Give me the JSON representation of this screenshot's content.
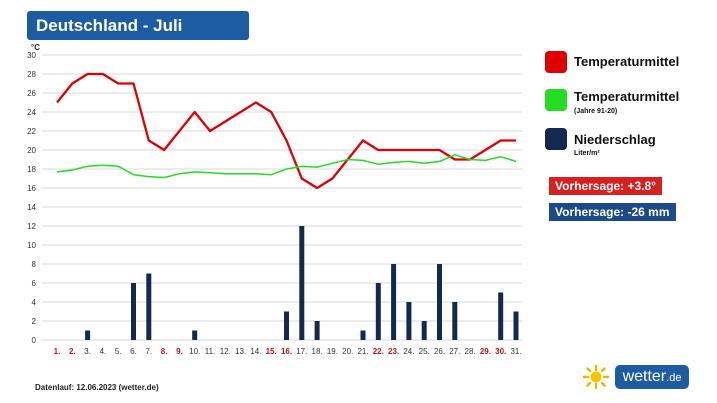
{
  "header": {
    "title": "Deutschland - Juli"
  },
  "legend": {
    "temp": {
      "label": "Temperaturmittel",
      "color": "#e00000"
    },
    "temp_ref": {
      "label": "Temperaturmittel",
      "sub": "(Jahre 91-20)",
      "color": "#22dd22"
    },
    "rain": {
      "label": "Niederschlag",
      "sub": "Liter/m²",
      "color": "#14294f"
    }
  },
  "forecast": {
    "temp": {
      "text": "Vorhersage: +3.8°",
      "color": "#d92020"
    },
    "rain": {
      "text": "Vorhersage: -26 mm",
      "color": "#1d4a8a"
    }
  },
  "footer": {
    "text": "Datenlauf: 12.06.2023 (wetter.de)"
  },
  "brand": {
    "name": "wetter",
    "tld": ".de"
  },
  "chart_data": {
    "type": "line",
    "ylabel": "°C",
    "ylim": [
      0,
      30
    ],
    "yticks": [
      0,
      2,
      4,
      6,
      8,
      10,
      12,
      14,
      16,
      18,
      20,
      22,
      24,
      26,
      28,
      30
    ],
    "grid": true,
    "categories": [
      "1.",
      "2.",
      "3.",
      "4.",
      "5.",
      "6.",
      "7.",
      "8.",
      "9.",
      "10.",
      "11.",
      "12.",
      "13.",
      "14.",
      "15.",
      "16.",
      "17.",
      "18.",
      "19.",
      "20.",
      "21.",
      "22.",
      "23.",
      "24.",
      "25.",
      "26.",
      "27.",
      "28.",
      "29.",
      "30.",
      "31."
    ],
    "highlight_days": [
      1,
      2,
      8,
      9,
      15,
      16,
      22,
      23,
      29,
      30
    ],
    "highlight_color": "#cc1111",
    "series": [
      {
        "name": "Temperaturmittel",
        "type": "line",
        "color": "#e00000",
        "values": [
          25,
          27,
          28,
          28,
          27,
          27,
          21,
          20,
          22,
          24,
          22,
          23,
          24,
          25,
          24,
          21,
          17,
          16,
          17,
          19,
          21,
          20,
          20,
          20,
          20,
          20,
          19,
          19,
          20,
          21,
          21
        ]
      },
      {
        "name": "Temperaturmittel (Jahre 91-20)",
        "type": "line",
        "color": "#22dd22",
        "values": [
          17.7,
          17.9,
          18.3,
          18.4,
          18.3,
          17.4,
          17.2,
          17.1,
          17.5,
          17.7,
          17.6,
          17.5,
          17.5,
          17.5,
          17.4,
          18.0,
          18.3,
          18.2,
          18.6,
          19.0,
          18.9,
          18.5,
          18.7,
          18.8,
          18.6,
          18.8,
          19.5,
          19.0,
          18.9,
          19.3,
          18.8
        ]
      },
      {
        "name": "Niederschlag",
        "type": "bar",
        "color": "#14294f",
        "values": [
          0,
          0,
          1,
          0,
          0,
          6,
          7,
          0,
          0,
          1,
          0,
          0,
          0,
          0,
          0,
          3,
          12,
          2,
          0,
          0,
          1,
          6,
          8,
          4,
          2,
          8,
          4,
          0,
          0,
          5,
          3
        ]
      }
    ]
  }
}
